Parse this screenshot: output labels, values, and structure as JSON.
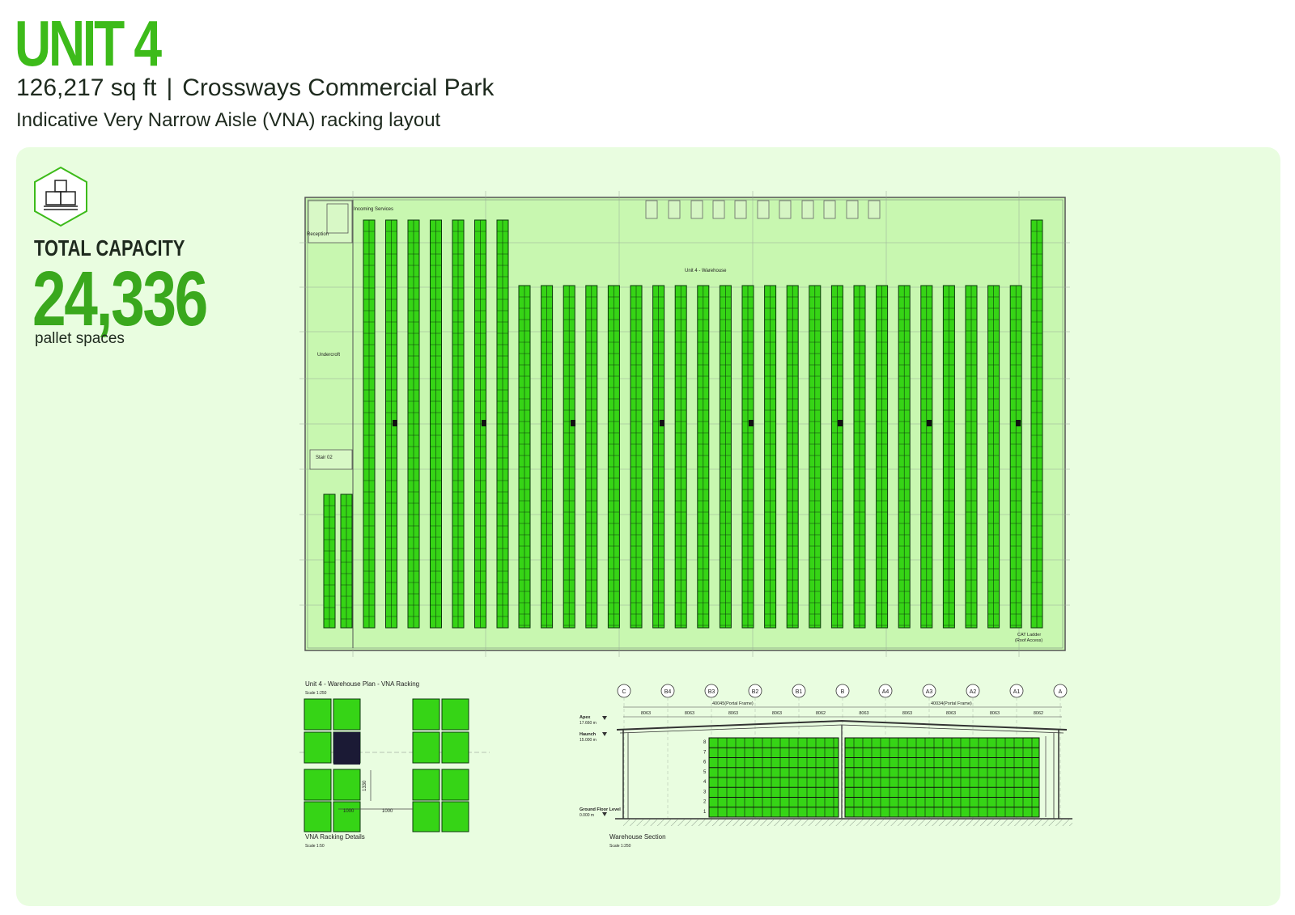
{
  "header": {
    "title": "UNIT 4",
    "area": "126,217 sq ft",
    "separator": "|",
    "location": "Crossways Commercial Park",
    "tagline": "Indicative Very Narrow Aisle (VNA) racking layout"
  },
  "capacity": {
    "label": "TOTAL CAPACITY",
    "value": "24,336",
    "unit": "pallet spaces",
    "icon": "pallet-boxes-icon"
  },
  "plan": {
    "incoming_services": "Incoming Services",
    "reception": "Reception",
    "warehouse_label": "Unit 4 - Warehouse",
    "undercroft": "Undercroft",
    "stair": "Stair 02",
    "cat_ladder_1": "CAT Ladder",
    "cat_ladder_2": "(Roof Access)"
  },
  "plan_caption": {
    "title": "Unit 4 - Warehouse Plan - VNA Racking",
    "scale": "Scale 1:250"
  },
  "detail": {
    "dim_vertical": "1330",
    "dim_a": "1000",
    "dim_b": "1000",
    "caption": "VNA Racking Details",
    "scale": "Scale 1:50"
  },
  "section": {
    "gridlines": [
      "C",
      "B4",
      "B3",
      "B2",
      "B1",
      "B",
      "A4",
      "A3",
      "A2",
      "A1",
      "A"
    ],
    "spans": [
      "8063",
      "8063",
      "8063",
      "8063",
      "8062",
      "8063",
      "8063",
      "8063",
      "8063",
      "8062"
    ],
    "portal_left": "40045(Portal Frame)",
    "portal_right": "40034(Portal Frame)",
    "apex_label": "Apex",
    "apex_value": "17.660 m",
    "haunch_label": "Haunch",
    "haunch_value": "15.000 m",
    "ground_label": "Ground Floor Level",
    "ground_value": "0.000 m",
    "levels": [
      "8",
      "7",
      "6",
      "5",
      "4",
      "3",
      "2",
      "1"
    ],
    "caption": "Warehouse Section",
    "scale": "Scale 1:250"
  },
  "colors": {
    "accent": "#3dbb1a",
    "panel": "#e9fde0",
    "floor": "#c8f7b0",
    "rack": "#36d416"
  }
}
